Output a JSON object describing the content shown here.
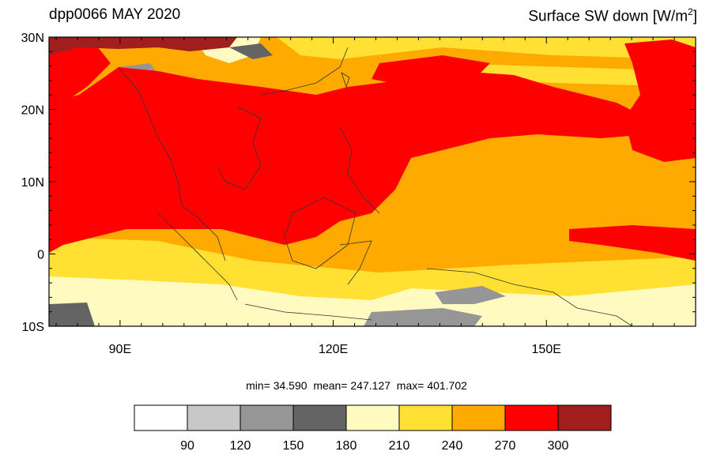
{
  "title_left": "dpp0066 MAY 2020",
  "title_right": {
    "text": "Surface SW down [W/m",
    "sup": "2",
    "close": "]"
  },
  "stats": {
    "min_label": "min=",
    "min": "34.590",
    "mean_label": "mean=",
    "mean": "247.127",
    "max_label": "max=",
    "max": "401.702"
  },
  "map": {
    "lon_range": [
      80,
      171
    ],
    "lat_range": [
      -10,
      30
    ],
    "lat_ticks": [
      {
        "value": 30,
        "label": "30N"
      },
      {
        "value": 20,
        "label": "20N"
      },
      {
        "value": 10,
        "label": "10N"
      },
      {
        "value": 0,
        "label": "0"
      },
      {
        "value": -10,
        "label": "10S"
      }
    ],
    "lon_ticks": [
      {
        "value": 90,
        "label": "90E"
      },
      {
        "value": 120,
        "label": "120E"
      },
      {
        "value": 150,
        "label": "150E"
      }
    ]
  },
  "colorbar": {
    "colors": [
      "#ffffff",
      "#c8c8c8",
      "#969696",
      "#646464",
      "#fffac0",
      "#ffe033",
      "#ffaa00",
      "#ff0000",
      "#a01e1e"
    ],
    "labels": [
      "90",
      "120",
      "150",
      "180",
      "210",
      "240",
      "270",
      "300"
    ]
  }
}
